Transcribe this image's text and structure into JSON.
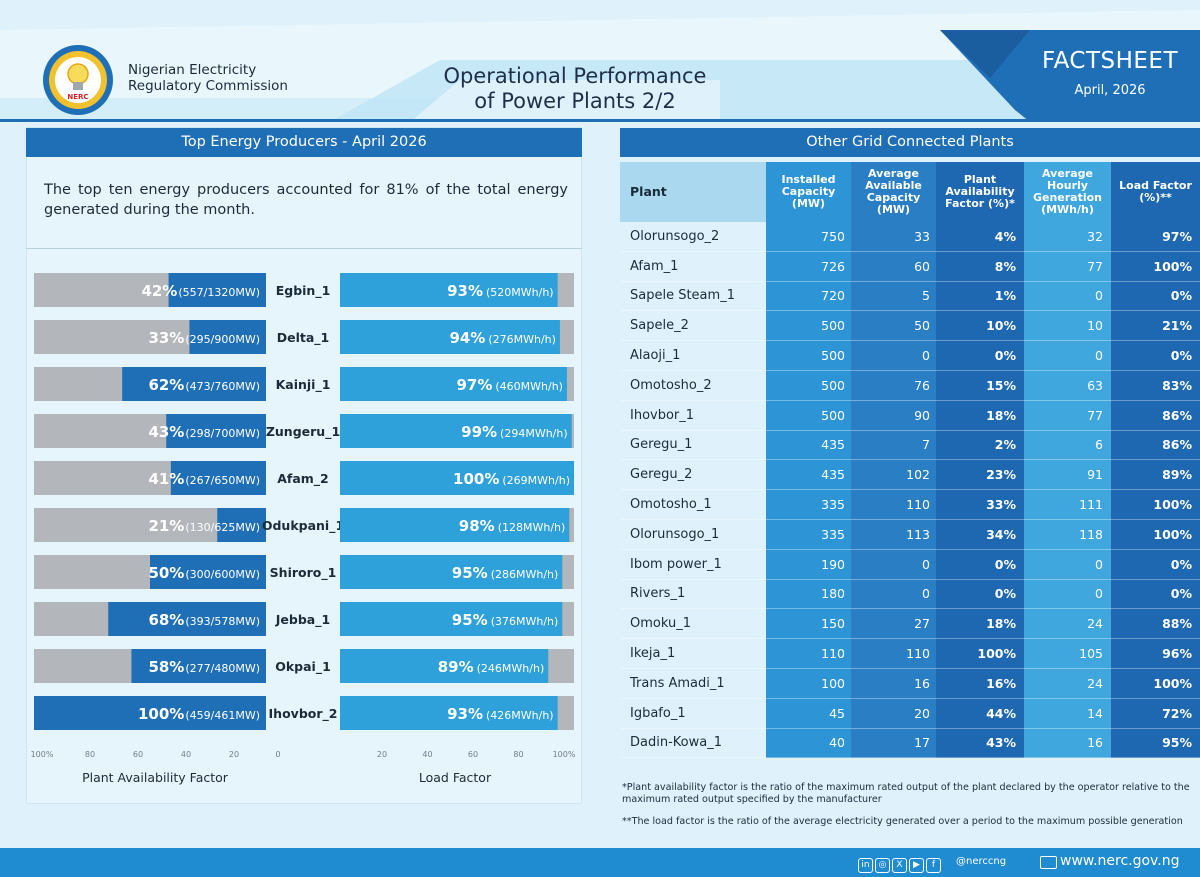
{
  "header": {
    "org_name": "Nigerian Electricity\nRegulatory Commission",
    "logo_text": "NERC",
    "title": "Operational Performance\nof Power Plants 2/2",
    "factsheet": "FACTSHEET",
    "date": "April, 2026"
  },
  "left": {
    "header": "Top Energy Producers - April 2026",
    "intro": "The top ten energy producers accounted for 81% of the total energy generated during the month.",
    "paf_label": "Plant Availability Factor",
    "lf_label": "Load Factor"
  },
  "right": {
    "header": "Other Grid Connected Plants",
    "columns": [
      "Plant",
      "Installed Capacity (MW)",
      "Average Available Capacity (MW)",
      "Plant Availability Factor (%)*",
      "Average Hourly Generation (MWh/h)",
      "Load Factor (%)**"
    ],
    "rows": [
      [
        "Olorunsogo_2",
        "750",
        "33",
        "4%",
        "32",
        "97%"
      ],
      [
        "Afam_1",
        "726",
        "60",
        "8%",
        "77",
        "100%"
      ],
      [
        "Sapele Steam_1",
        "720",
        "5",
        "1%",
        "0",
        "0%"
      ],
      [
        "Sapele_2",
        "500",
        "50",
        "10%",
        "10",
        "21%"
      ],
      [
        "Alaoji_1",
        "500",
        "0",
        "0%",
        "0",
        "0%"
      ],
      [
        "Omotosho_2",
        "500",
        "76",
        "15%",
        "63",
        "83%"
      ],
      [
        "Ihovbor_1",
        "500",
        "90",
        "18%",
        "77",
        "86%"
      ],
      [
        "Geregu_1",
        "435",
        "7",
        "2%",
        "6",
        "86%"
      ],
      [
        "Geregu_2",
        "435",
        "102",
        "23%",
        "91",
        "89%"
      ],
      [
        "Omotosho_1",
        "335",
        "110",
        "33%",
        "111",
        "100%"
      ],
      [
        "Olorunsogo_1",
        "335",
        "113",
        "34%",
        "118",
        "100%"
      ],
      [
        "Ibom power_1",
        "190",
        "0",
        "0%",
        "0",
        "0%"
      ],
      [
        "Rivers_1",
        "180",
        "0",
        "0%",
        "0",
        "0%"
      ],
      [
        "Omoku_1",
        "150",
        "27",
        "18%",
        "24",
        "88%"
      ],
      [
        "Ikeja_1",
        "110",
        "110",
        "100%",
        "105",
        "96%"
      ],
      [
        "Trans Amadi_1",
        "100",
        "16",
        "16%",
        "24",
        "100%"
      ],
      [
        "Igbafo_1",
        "45",
        "20",
        "44%",
        "14",
        "72%"
      ],
      [
        "Dadin-Kowa_1",
        "40",
        "17",
        "43%",
        "16",
        "95%"
      ]
    ],
    "note1": "*Plant availability factor is the ratio of the maximum rated output of the plant declared by the operator relative to the maximum rated output specified by the manufacturer",
    "note2": "**The load factor is the ratio of the average electricity generated over a period to the maximum possible generation"
  },
  "chart_data": [
    {
      "type": "bar",
      "orientation": "horizontal",
      "direction": "right-to-left",
      "categories": [
        "Egbin_1",
        "Delta_1",
        "Kainji_1",
        "Zungeru_1",
        "Afam_2",
        "Odukpani_1",
        "Shiroro_1",
        "Jebba_1",
        "Okpai_1",
        "Ihovbor_2"
      ],
      "values": [
        42,
        33,
        62,
        43,
        41,
        21,
        50,
        68,
        58,
        100
      ],
      "value_labels": [
        "42%",
        "33%",
        "62%",
        "43%",
        "41%",
        "21%",
        "50%",
        "68%",
        "58%",
        "100%"
      ],
      "detail_labels": [
        "(557/1320MW)",
        "(295/900MW)",
        "(473/760MW)",
        "(298/700MW)",
        "(267/650MW)",
        "(130/625MW)",
        "(300/600MW)",
        "(393/578MW)",
        "(277/480MW)",
        "(459/461MW)"
      ],
      "xlabel": "Plant Availability Factor",
      "xlim": [
        0,
        100
      ],
      "ticks": [
        "100%",
        "80",
        "60",
        "40",
        "20",
        "0"
      ],
      "colors": {
        "bar": "#1f6fb7",
        "track": "#b3b7bb"
      }
    },
    {
      "type": "bar",
      "orientation": "horizontal",
      "categories": [
        "Egbin_1",
        "Delta_1",
        "Kainji_1",
        "Zungeru_1",
        "Afam_2",
        "Odukpani_1",
        "Shiroro_1",
        "Jebba_1",
        "Okpai_1",
        "Ihovbor_2"
      ],
      "values": [
        93,
        94,
        97,
        99,
        100,
        98,
        95,
        95,
        89,
        93
      ],
      "value_labels": [
        "93%",
        "94%",
        "97%",
        "99%",
        "100%",
        "98%",
        "95%",
        "95%",
        "89%",
        "93%"
      ],
      "detail_labels": [
        "(520MWh/h)",
        "(276MWh/h)",
        "(460MWh/h)",
        "(294MWh/h)",
        "(269MWh/h)",
        "(128MWh/h)",
        "(286MWh/h)",
        "(376MWh/h)",
        "(246MWh/h)",
        "(426MWh/h)"
      ],
      "xlabel": "Load Factor",
      "xlim": [
        0,
        100
      ],
      "ticks": [
        "20",
        "40",
        "60",
        "80",
        "100%"
      ],
      "colors": {
        "bar": "#2ea1da",
        "track": "#b3b7bb"
      }
    }
  ],
  "footer": {
    "social_icons": [
      "linkedin-icon",
      "instagram-icon",
      "x-icon",
      "youtube-icon",
      "facebook-icon"
    ],
    "handle": "@nerccng",
    "website": "www.nerc.gov.ng"
  }
}
